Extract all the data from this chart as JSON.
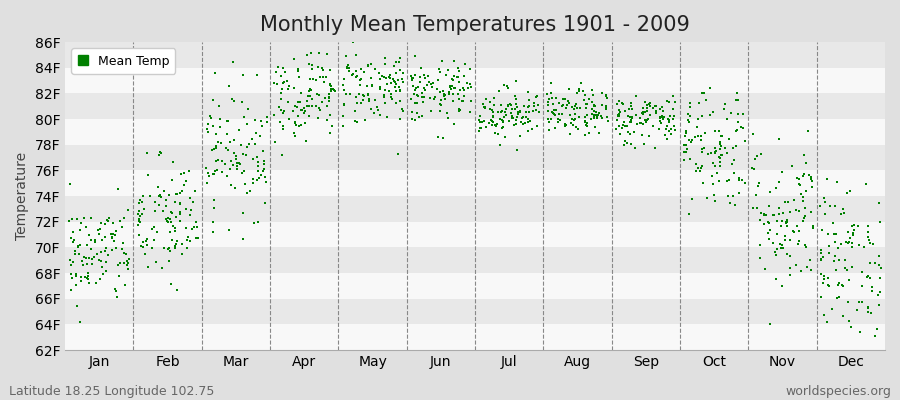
{
  "title": "Monthly Mean Temperatures 1901 - 2009",
  "ylabel": "Temperature",
  "xlabel_labels": [
    "Jan",
    "Feb",
    "Mar",
    "Apr",
    "May",
    "Jun",
    "Jul",
    "Aug",
    "Sep",
    "Oct",
    "Nov",
    "Dec"
  ],
  "ylim": [
    62,
    86
  ],
  "yticks": [
    62,
    64,
    66,
    68,
    70,
    72,
    74,
    76,
    78,
    80,
    82,
    84,
    86
  ],
  "ytick_labels": [
    "62F",
    "64F",
    "66F",
    "68F",
    "70F",
    "72F",
    "74F",
    "76F",
    "78F",
    "80F",
    "82F",
    "84F",
    "86F"
  ],
  "legend_label": "Mean Temp",
  "marker_color": "#008000",
  "background_color": "#e0e0e0",
  "plot_bg_color": "#f0f0f0",
  "band_color_dark": "#e8e8e8",
  "band_color_light": "#f8f8f8",
  "footer_left": "Latitude 18.25 Longitude 102.75",
  "footer_right": "worldspecies.org",
  "title_fontsize": 15,
  "axis_fontsize": 10,
  "footer_fontsize": 9,
  "monthly_means": [
    69.5,
    72.0,
    77.5,
    82.0,
    82.5,
    82.0,
    80.5,
    80.5,
    80.0,
    78.0,
    72.5,
    69.0
  ],
  "monthly_stds": [
    2.0,
    2.5,
    2.5,
    1.8,
    1.5,
    1.2,
    1.0,
    0.9,
    1.0,
    2.5,
    3.0,
    3.0
  ],
  "n_years": 109,
  "seed": 42
}
